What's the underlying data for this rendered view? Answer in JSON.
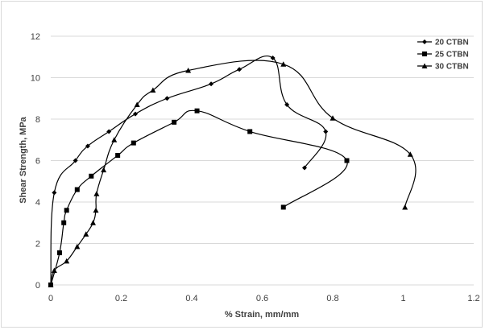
{
  "chart_data": {
    "type": "scatter",
    "title": "",
    "xlabel": "% Strain, mm/mm",
    "ylabel": "Shear Strength, MPa",
    "xlim": [
      0,
      1.2
    ],
    "ylim": [
      0,
      12
    ],
    "x_ticks": [
      "0",
      "0.2",
      "0.4",
      "0.6",
      "0.8",
      "1",
      "1.2"
    ],
    "y_ticks": [
      "0",
      "2",
      "4",
      "6",
      "8",
      "10",
      "12"
    ],
    "grid": "horizontal",
    "legend_position": "top-right",
    "lines": "smooth",
    "series": [
      {
        "name": "20 CTBN",
        "marker": "diamond",
        "color": "#000000",
        "points": [
          [
            0,
            0
          ],
          [
            0.01,
            4.45
          ],
          [
            0.07,
            6.0
          ],
          [
            0.105,
            6.7
          ],
          [
            0.165,
            7.4
          ],
          [
            0.24,
            8.25
          ],
          [
            0.33,
            9.0
          ],
          [
            0.455,
            9.7
          ],
          [
            0.535,
            10.4
          ],
          [
            0.63,
            10.95
          ],
          [
            0.67,
            8.7
          ],
          [
            0.78,
            7.4
          ],
          [
            0.72,
            5.65
          ]
        ]
      },
      {
        "name": "25 CTBN",
        "marker": "square",
        "color": "#000000",
        "points": [
          [
            0,
            0
          ],
          [
            0.025,
            1.55
          ],
          [
            0.037,
            3.0
          ],
          [
            0.045,
            3.6
          ],
          [
            0.075,
            4.6
          ],
          [
            0.115,
            5.25
          ],
          [
            0.19,
            6.25
          ],
          [
            0.235,
            6.85
          ],
          [
            0.35,
            7.85
          ],
          [
            0.415,
            8.4
          ],
          [
            0.565,
            7.4
          ],
          [
            0.84,
            6.0
          ],
          [
            0.66,
            3.75
          ]
        ]
      },
      {
        "name": "30 CTBN",
        "marker": "triangle",
        "color": "#000000",
        "points": [
          [
            0,
            0
          ],
          [
            0.01,
            0.7
          ],
          [
            0.045,
            1.15
          ],
          [
            0.075,
            1.85
          ],
          [
            0.1,
            2.45
          ],
          [
            0.12,
            3.0
          ],
          [
            0.128,
            3.6
          ],
          [
            0.13,
            4.4
          ],
          [
            0.15,
            5.55
          ],
          [
            0.18,
            7.0
          ],
          [
            0.245,
            8.7
          ],
          [
            0.29,
            9.4
          ],
          [
            0.39,
            10.35
          ],
          [
            0.66,
            10.65
          ],
          [
            0.8,
            8.05
          ],
          [
            1.02,
            6.3
          ],
          [
            1.005,
            3.75
          ]
        ]
      }
    ]
  }
}
